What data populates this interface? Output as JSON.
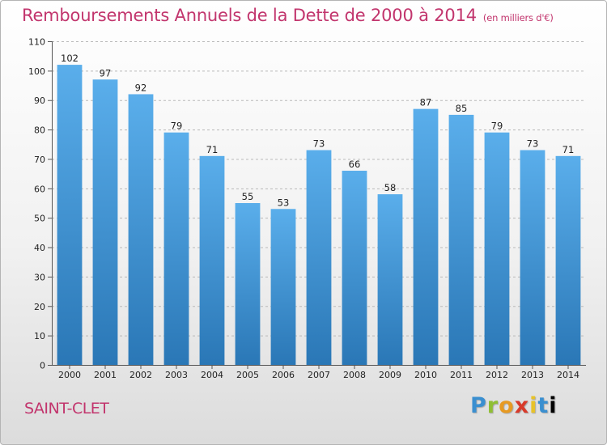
{
  "header": {
    "title": "Remboursements Annuels de la Dette de 2000 à 2014",
    "subtitle": "(en milliers d'€)"
  },
  "footer": {
    "place": "SAINT-CLET",
    "brand": "Proxiti",
    "brand_letters": [
      "P",
      "r",
      "o",
      "x",
      "i",
      "t",
      "i"
    ]
  },
  "colors": {
    "title": "#c2356d",
    "bar_top": "#5aaeeb",
    "bar_bottom": "#2a77b6"
  },
  "chart_data": {
    "type": "bar",
    "title": "Remboursements Annuels de la Dette de 2000 à 2014",
    "xlabel": "",
    "ylabel": "",
    "categories": [
      "2000",
      "2001",
      "2002",
      "2003",
      "2004",
      "2005",
      "2006",
      "2007",
      "2008",
      "2009",
      "2010",
      "2011",
      "2012",
      "2013",
      "2014"
    ],
    "values": [
      102,
      97,
      92,
      79,
      71,
      55,
      53,
      73,
      66,
      58,
      87,
      85,
      79,
      73,
      71
    ],
    "ylim": [
      0,
      110
    ],
    "yticks": [
      0,
      10,
      20,
      30,
      40,
      50,
      60,
      70,
      80,
      90,
      100,
      110
    ],
    "grid": "horizontal-dashed",
    "legend": "none"
  }
}
